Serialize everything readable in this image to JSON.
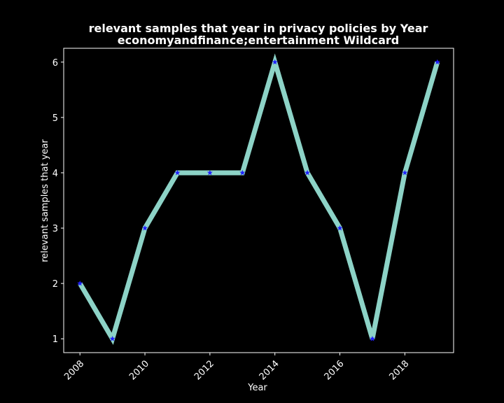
{
  "chart_data": {
    "type": "line",
    "title_line1": "relevant samples that year in privacy policies by Year",
    "title_line2": "economyandfinance;entertainment Wildcard",
    "xlabel": "Year",
    "ylabel": "relevant samples that year",
    "x": [
      2008,
      2009,
      2010,
      2011,
      2012,
      2013,
      2014,
      2015,
      2016,
      2017,
      2018,
      2019
    ],
    "y": [
      2,
      1,
      3,
      4,
      4,
      4,
      6,
      4,
      3,
      1,
      4,
      6
    ],
    "xlim": [
      2007.5,
      2019.5
    ],
    "ylim": [
      0.75,
      6.25
    ],
    "xticks": [
      2008,
      2010,
      2012,
      2014,
      2016,
      2018
    ],
    "yticks": [
      1,
      2,
      3,
      4,
      5,
      6
    ],
    "grid": false,
    "colors": {
      "background": "#000000",
      "line": "#8dd3c7",
      "marker": "#1f1fff",
      "axes": "#ffffff"
    }
  }
}
